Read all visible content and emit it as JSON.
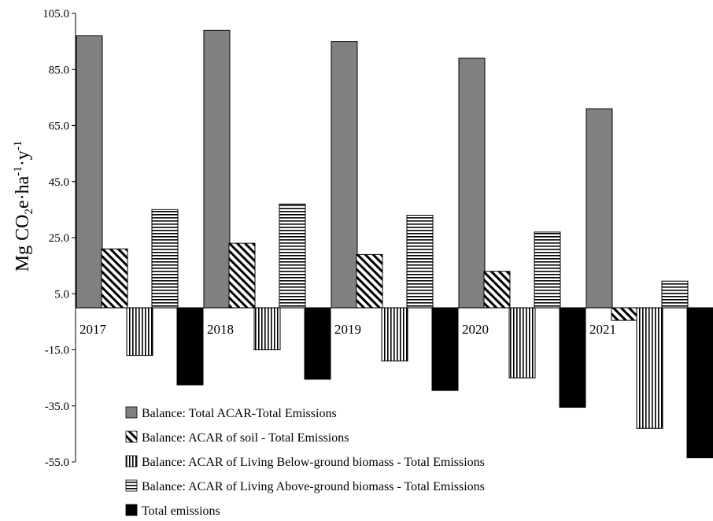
{
  "chart_data": {
    "type": "bar",
    "ylabel": "Mg CO2e·ha-1·y-1",
    "ylabel_parts": {
      "a": "Mg CO",
      "sub": "2",
      "b": "e·ha",
      "sup1": "-1",
      "c": "·y",
      "sup2": "-1"
    },
    "categories": [
      "2017",
      "2018",
      "2019",
      "2020",
      "2021"
    ],
    "ylim": [
      -55,
      105
    ],
    "yticks": [
      -55,
      -35,
      -15,
      5,
      25,
      45,
      65,
      85,
      105
    ],
    "ytick_labels": [
      "-55.0",
      "-35.0",
      "-15.0",
      "5.0",
      "25.0",
      "45.0",
      "65.0",
      "85.0",
      "105.0"
    ],
    "grid": false,
    "legend_position": "bottom-center",
    "series": [
      {
        "name": "Balance: Total ACAR-Total Emissions",
        "pattern": "solid-gray",
        "color": "#808080",
        "values": [
          97.0,
          99.0,
          95.0,
          89.0,
          71.0
        ]
      },
      {
        "name": "Balance: ACAR of soil - Total Emissions",
        "pattern": "diagonal-hatch",
        "color": "#000000",
        "values": [
          21.0,
          23.0,
          19.0,
          13.0,
          -4.5
        ]
      },
      {
        "name": "Balance: ACAR of Living Below-ground biomass - Total Emissions",
        "pattern": "vertical-lines",
        "color": "#000000",
        "values": [
          -17.0,
          -15.0,
          -19.0,
          -25.0,
          -43.0
        ]
      },
      {
        "name": "Balance: ACAR of Living Above-ground biomass - Total Emissions",
        "pattern": "horizontal-lines",
        "color": "#000000",
        "values": [
          35.0,
          37.0,
          33.0,
          27.0,
          9.5
        ]
      },
      {
        "name": "Total emissions",
        "pattern": "solid-black",
        "color": "#000000",
        "values": [
          -27.5,
          -25.5,
          -29.5,
          -35.5,
          -53.5
        ]
      }
    ]
  }
}
